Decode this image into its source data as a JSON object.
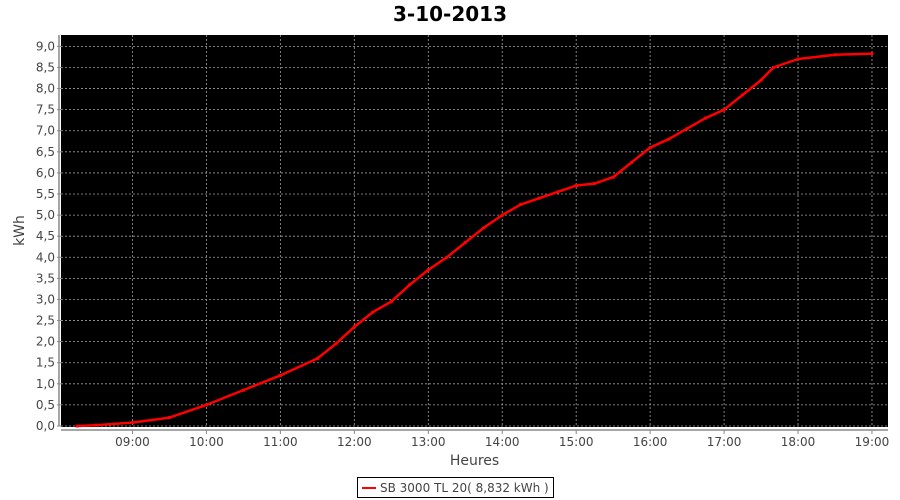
{
  "chart_data": {
    "type": "line",
    "title": "3-10-2013",
    "xlabel": "Heures",
    "ylabel": "kWh",
    "xlim": [
      "08:02",
      "19:13"
    ],
    "ylim": [
      0,
      9.27
    ],
    "x_ticks": [
      "09:00",
      "10:00",
      "11:00",
      "12:00",
      "13:00",
      "14:00",
      "15:00",
      "16:00",
      "17:00",
      "18:00",
      "19:00"
    ],
    "y_ticks": [
      "0,0",
      "0,5",
      "1,0",
      "1,5",
      "2,0",
      "2,5",
      "3,0",
      "3,5",
      "4,0",
      "4,5",
      "5,0",
      "5,5",
      "6,0",
      "6,5",
      "7,0",
      "7,5",
      "8,0",
      "8,5",
      "9,0"
    ],
    "grid": true,
    "legend_placement": "bottom",
    "colors": {
      "plot_background": "#000000",
      "series": "#ff0000",
      "grid": "#a0a0a0"
    },
    "series": [
      {
        "name": "SB 3000 TL 20( 8,832 kWh )",
        "x": [
          "08:15",
          "08:30",
          "09:00",
          "09:30",
          "10:00",
          "10:30",
          "11:00",
          "11:30",
          "11:45",
          "12:00",
          "12:15",
          "12:30",
          "12:45",
          "13:00",
          "13:15",
          "13:30",
          "13:45",
          "14:00",
          "14:15",
          "14:30",
          "14:45",
          "15:00",
          "15:15",
          "15:30",
          "15:45",
          "16:00",
          "16:15",
          "16:30",
          "16:45",
          "17:00",
          "17:15",
          "17:30",
          "17:40",
          "18:00",
          "18:30",
          "19:00"
        ],
        "values": [
          0.0,
          0.02,
          0.08,
          0.2,
          0.5,
          0.85,
          1.2,
          1.6,
          1.95,
          2.35,
          2.7,
          2.95,
          3.35,
          3.7,
          4.0,
          4.35,
          4.7,
          5.0,
          5.25,
          5.4,
          5.55,
          5.7,
          5.75,
          5.9,
          6.25,
          6.6,
          6.8,
          7.05,
          7.3,
          7.5,
          7.85,
          8.2,
          8.5,
          8.7,
          8.8,
          8.83
        ]
      }
    ]
  }
}
